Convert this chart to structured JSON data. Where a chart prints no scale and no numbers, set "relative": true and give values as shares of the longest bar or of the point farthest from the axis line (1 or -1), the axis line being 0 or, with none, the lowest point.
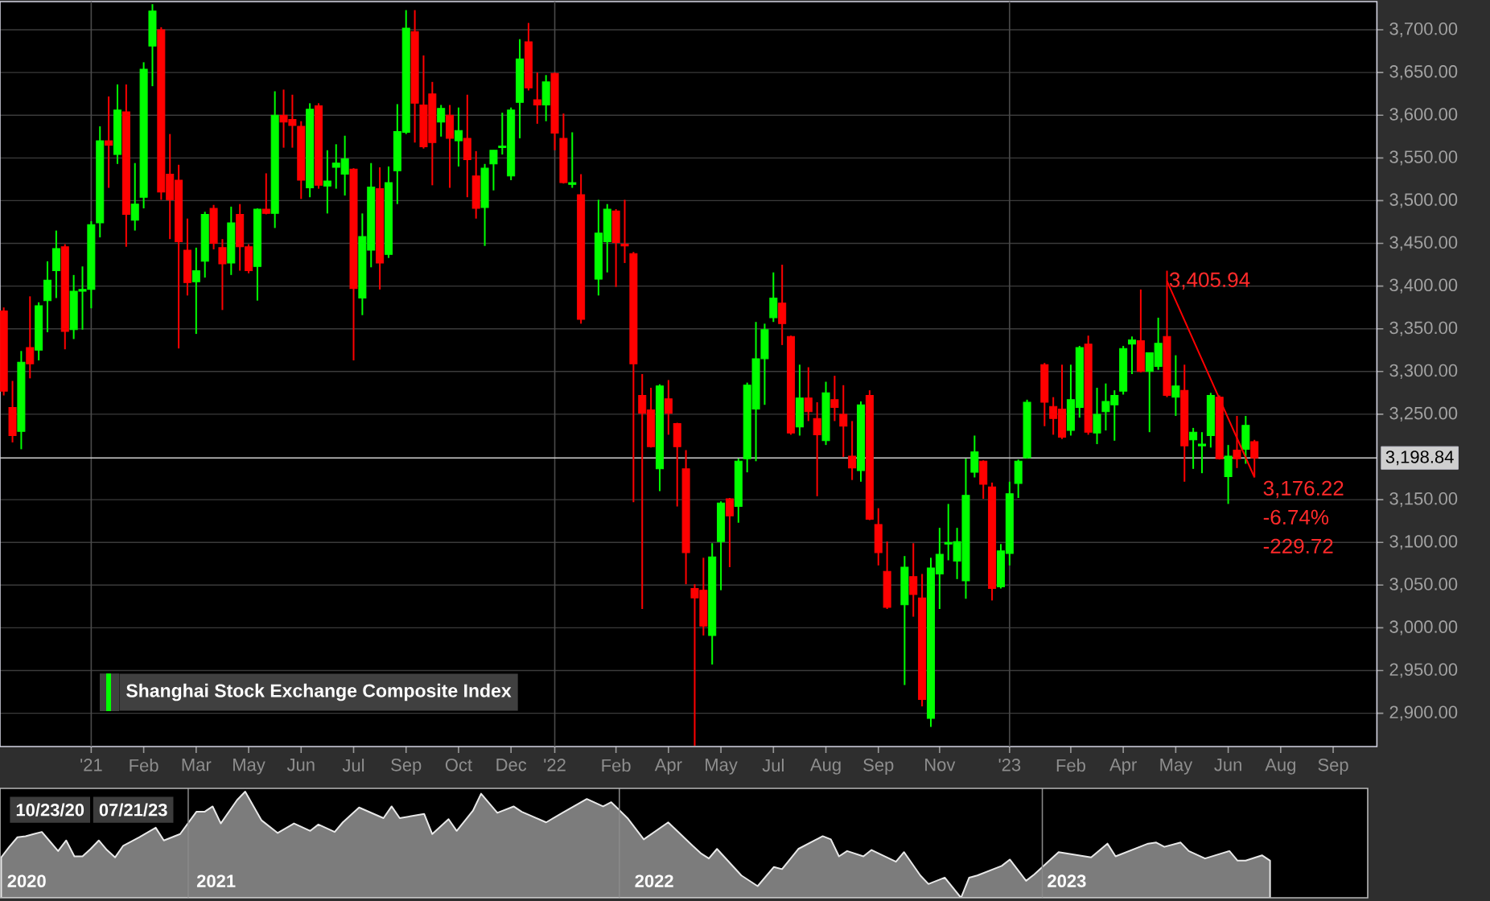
{
  "chart_data": [
    {
      "type": "candlestick",
      "x": [
        "2020-10-23",
        "2020-10-30",
        "2020-11-06",
        "2020-11-13",
        "2020-11-20",
        "2020-11-27",
        "2020-12-04",
        "2020-12-11",
        "2020-12-18",
        "2020-12-25",
        "2021-01-01",
        "2021-01-08",
        "2021-01-15",
        "2021-01-22",
        "2021-01-29",
        "2021-02-05",
        "2021-02-12",
        "2021-02-19",
        "2021-02-26",
        "2021-03-05",
        "2021-03-12",
        "2021-03-19",
        "2021-03-26",
        "2021-04-02",
        "2021-04-09",
        "2021-04-16",
        "2021-04-23",
        "2021-04-30",
        "2021-05-07",
        "2021-05-14",
        "2021-05-21",
        "2021-05-28",
        "2021-06-04",
        "2021-06-11",
        "2021-06-18",
        "2021-06-25",
        "2021-07-02",
        "2021-07-09",
        "2021-07-16",
        "2021-07-23",
        "2021-07-30",
        "2021-08-06",
        "2021-08-13",
        "2021-08-20",
        "2021-08-27",
        "2021-09-03",
        "2021-09-10",
        "2021-09-17",
        "2021-09-24",
        "2021-10-01",
        "2021-10-08",
        "2021-10-15",
        "2021-10-22",
        "2021-10-29",
        "2021-11-05",
        "2021-11-12",
        "2021-11-19",
        "2021-11-26",
        "2021-12-03",
        "2021-12-10",
        "2021-12-17",
        "2021-12-24",
        "2021-12-31",
        "2022-01-07",
        "2022-01-14",
        "2022-01-21",
        "2022-01-28",
        "2022-02-11",
        "2022-02-18",
        "2022-02-25",
        "2022-03-04",
        "2022-03-11",
        "2022-03-18",
        "2022-03-25",
        "2022-04-01",
        "2022-04-08",
        "2022-04-15",
        "2022-04-22",
        "2022-04-29",
        "2022-05-06",
        "2022-05-13",
        "2022-05-20",
        "2022-05-27",
        "2022-06-03",
        "2022-06-10",
        "2022-06-17",
        "2022-06-24",
        "2022-07-01",
        "2022-07-08",
        "2022-07-15",
        "2022-07-22",
        "2022-07-29",
        "2022-08-05",
        "2022-08-12",
        "2022-08-19",
        "2022-08-26",
        "2022-09-02",
        "2022-09-09",
        "2022-09-16",
        "2022-09-23",
        "2022-09-30",
        "2022-10-14",
        "2022-10-21",
        "2022-10-28",
        "2022-11-04",
        "2022-11-11",
        "2022-11-18",
        "2022-11-25",
        "2022-12-02",
        "2022-12-09",
        "2022-12-16",
        "2022-12-23",
        "2022-12-30",
        "2023-01-06",
        "2023-01-13",
        "2023-01-20",
        "2023-02-03",
        "2023-02-10",
        "2023-02-17",
        "2023-02-24",
        "2023-03-03",
        "2023-03-10",
        "2023-03-17",
        "2023-03-24",
        "2023-03-31",
        "2023-04-07",
        "2023-04-14",
        "2023-04-21",
        "2023-04-28",
        "2023-05-05",
        "2023-05-12",
        "2023-05-19",
        "2023-05-26",
        "2023-06-02",
        "2023-06-09",
        "2023-06-16",
        "2023-06-23",
        "2023-06-30",
        "2023-07-07",
        "2023-07-14",
        "2023-07-21"
      ],
      "series": [
        {
          "name": "Shanghai Stock Exchange Composite Index",
          "color": "#00ff00",
          "colors": [
            "#ff0000",
            "#ff0000",
            "#00ff00",
            "#ff0000",
            "#00ff00",
            "#00ff00",
            "#00ff00",
            "#ff0000",
            "#00ff00",
            "#00ff00",
            "#00ff00",
            "#00ff00",
            "#ff0000",
            "#00ff00",
            "#ff0000",
            "#00ff00",
            "#00ff00",
            "#00ff00",
            "#ff0000",
            "#ff0000",
            "#ff0000",
            "#ff0000",
            "#00ff00",
            "#00ff00",
            "#ff0000",
            "#ff0000",
            "#00ff00",
            "#ff0000",
            "#ff0000",
            "#00ff00",
            "#ff0000",
            "#00ff00",
            "#ff0000",
            "#ff0000",
            "#ff0000",
            "#00ff00",
            "#ff0000",
            "#00ff00",
            "#00ff00",
            "#00ff00",
            "#ff0000",
            "#00ff00",
            "#00ff00",
            "#ff0000",
            "#00ff00",
            "#00ff00",
            "#00ff00",
            "#ff0000",
            "#ff0000",
            "#ff0000",
            "#00ff00",
            "#ff0000",
            "#00ff00",
            "#ff0000",
            "#ff0000",
            "#00ff00",
            "#00ff00",
            "#00ff00",
            "#00ff00",
            "#00ff00",
            "#ff0000",
            "#ff0000",
            "#00ff00",
            "#ff0000",
            "#ff0000",
            "#00ff00",
            "#ff0000",
            "#00ff00",
            "#00ff00",
            "#ff0000",
            "#ff0000",
            "#ff0000",
            "#ff0000",
            "#ff0000",
            "#00ff00",
            "#ff0000",
            "#ff0000",
            "#ff0000",
            "#ff0000",
            "#ff0000",
            "#00ff00",
            "#00ff00",
            "#ff0000",
            "#00ff00",
            "#00ff00",
            "#00ff00",
            "#00ff00",
            "#00ff00",
            "#ff0000",
            "#ff0000",
            "#00ff00",
            "#ff0000",
            "#ff0000",
            "#00ff00",
            "#ff0000",
            "#ff0000",
            "#ff0000",
            "#00ff00",
            "#ff0000",
            "#ff0000",
            "#ff0000",
            "#00ff00",
            "#ff0000",
            "#ff0000",
            "#00ff00",
            "#00ff00",
            "#00ff00",
            "#00ff00",
            "#00ff00",
            "#00ff00",
            "#ff0000",
            "#ff0000",
            "#00ff00",
            "#00ff00",
            "#00ff00",
            "#00ff00",
            "#ff0000",
            "#ff0000",
            "#ff0000",
            "#00ff00",
            "#00ff00",
            "#ff0000",
            "#00ff00",
            "#00ff00",
            "#00ff00",
            "#00ff00",
            "#00ff00",
            "#ff0000",
            "#00ff00",
            "#00ff00",
            "#ff0000",
            "#00ff00",
            "#ff0000",
            "#00ff00",
            "#00ff00",
            "#00ff00",
            "#ff0000",
            "#00ff00",
            "#ff0000",
            "#00ff00",
            "#ff0000"
          ],
          "ohlc": [
            [
              3371,
              3375,
              3272,
              3277
            ],
            [
              3258,
              3289,
              3217,
              3225
            ],
            [
              3230,
              3324,
              3209,
              3311
            ],
            [
              3328,
              3388,
              3292,
              3309
            ],
            [
              3325,
              3381,
              3313,
              3377
            ],
            [
              3383,
              3429,
              3346,
              3407
            ],
            [
              3418,
              3465,
              3386,
              3444
            ],
            [
              3446,
              3449,
              3326,
              3347
            ],
            [
              3349,
              3413,
              3338,
              3394
            ],
            [
              3394,
              3423,
              3349,
              3396
            ],
            [
              3396,
              3476,
              3374,
              3472
            ],
            [
              3474,
              3587,
              3457,
              3570
            ],
            [
              3570,
              3622,
              3515,
              3565
            ],
            [
              3554,
              3636,
              3543,
              3606
            ],
            [
              3604,
              3636,
              3446,
              3484
            ],
            [
              3477,
              3544,
              3465,
              3496
            ],
            [
              3504,
              3662,
              3491,
              3654
            ],
            [
              3681,
              3730,
              3634,
              3722
            ],
            [
              3700,
              3703,
              3501,
              3510
            ],
            [
              3531,
              3578,
              3455,
              3501
            ],
            [
              3524,
              3542,
              3327,
              3452
            ],
            [
              3442,
              3479,
              3389,
              3404
            ],
            [
              3405,
              3445,
              3344,
              3418
            ],
            [
              3429,
              3487,
              3410,
              3484
            ],
            [
              3491,
              3495,
              3443,
              3450
            ],
            [
              3445,
              3455,
              3372,
              3426
            ],
            [
              3427,
              3493,
              3413,
              3474
            ],
            [
              3484,
              3496,
              3418,
              3446
            ],
            [
              3446,
              3449,
              3415,
              3418
            ],
            [
              3423,
              3491,
              3383,
              3490
            ],
            [
              3490,
              3532,
              3484,
              3485
            ],
            [
              3485,
              3628,
              3468,
              3600
            ],
            [
              3600,
              3630,
              3562,
              3592
            ],
            [
              3595,
              3624,
              3562,
              3588
            ],
            [
              3587,
              3593,
              3502,
              3524
            ],
            [
              3515,
              3614,
              3504,
              3607
            ],
            [
              3611,
              3614,
              3514,
              3518
            ],
            [
              3517,
              3559,
              3485,
              3523
            ],
            [
              3539,
              3566,
              3514,
              3544
            ],
            [
              3531,
              3576,
              3506,
              3549
            ],
            [
              3537,
              3538,
              3313,
              3397
            ],
            [
              3386,
              3485,
              3366,
              3458
            ],
            [
              3442,
              3544,
              3422,
              3516
            ],
            [
              3514,
              3539,
              3396,
              3427
            ],
            [
              3437,
              3540,
              3433,
              3521
            ],
            [
              3535,
              3613,
              3496,
              3581
            ],
            [
              3580,
              3723,
              3578,
              3702
            ],
            [
              3698,
              3723,
              3568,
              3614
            ],
            [
              3612,
              3670,
              3561,
              3563
            ],
            [
              3625,
              3639,
              3518,
              3568
            ],
            [
              3592,
              3612,
              3575,
              3608
            ],
            [
              3600,
              3612,
              3515,
              3573
            ],
            [
              3570,
              3609,
              3540,
              3582
            ],
            [
              3573,
              3624,
              3504,
              3548
            ],
            [
              3529,
              3558,
              3479,
              3491
            ],
            [
              3492,
              3543,
              3447,
              3538
            ],
            [
              3543,
              3559,
              3512,
              3559
            ],
            [
              3562,
              3603,
              3554,
              3564
            ],
            [
              3529,
              3609,
              3524,
              3606
            ],
            [
              3615,
              3689,
              3573,
              3666
            ],
            [
              3686,
              3708,
              3629,
              3632
            ],
            [
              3618,
              3650,
              3590,
              3612
            ],
            [
              3612,
              3647,
              3593,
              3639
            ],
            [
              3649,
              3650,
              3559,
              3579
            ],
            [
              3573,
              3602,
              3520,
              3521
            ],
            [
              3519,
              3580,
              3515,
              3521
            ],
            [
              3507,
              3531,
              3356,
              3361
            ],
            [
              3408,
              3501,
              3389,
              3462
            ],
            [
              3452,
              3496,
              3416,
              3490
            ],
            [
              3488,
              3490,
              3399,
              3451
            ],
            [
              3449,
              3501,
              3427,
              3447
            ],
            [
              3438,
              3440,
              3147,
              3309
            ],
            [
              3272,
              3297,
              3022,
              3251
            ],
            [
              3255,
              3281,
              3211,
              3212
            ],
            [
              3186,
              3285,
              3160,
              3283
            ],
            [
              3268,
              3290,
              3226,
              3251
            ],
            [
              3239,
              3240,
              3142,
              3212
            ],
            [
              3186,
              3208,
              3051,
              3088
            ],
            [
              3046,
              3051,
              2862,
              3035
            ],
            [
              3044,
              3082,
              2991,
              3002
            ],
            [
              2991,
              3099,
              2957,
              3083
            ],
            [
              3101,
              3148,
              3044,
              3146
            ],
            [
              3151,
              3152,
              3071,
              3131
            ],
            [
              3142,
              3198,
              3123,
              3195
            ],
            [
              3198,
              3287,
              3182,
              3284
            ],
            [
              3256,
              3358,
              3195,
              3315
            ],
            [
              3315,
              3356,
              3261,
              3349
            ],
            [
              3363,
              3416,
              3358,
              3386
            ],
            [
              3380,
              3425,
              3331,
              3356
            ],
            [
              3341,
              3342,
              3226,
              3228
            ],
            [
              3235,
              3308,
              3225,
              3269
            ],
            [
              3269,
              3305,
              3242,
              3253
            ],
            [
              3245,
              3264,
              3154,
              3226
            ],
            [
              3219,
              3288,
              3214,
              3275
            ],
            [
              3267,
              3295,
              3242,
              3258
            ],
            [
              3250,
              3284,
              3200,
              3236
            ],
            [
              3201,
              3242,
              3173,
              3187
            ],
            [
              3184,
              3265,
              3171,
              3261
            ],
            [
              3272,
              3278,
              3126,
              3127
            ],
            [
              3121,
              3140,
              3073,
              3088
            ],
            [
              3066,
              3101,
              3022,
              3024
            ],
            [
              3027,
              3084,
              2933,
              3071
            ],
            [
              3060,
              3099,
              3013,
              3039
            ],
            [
              3035,
              3063,
              2908,
              2916
            ],
            [
              2894,
              3082,
              2884,
              3070
            ],
            [
              3063,
              3117,
              3022,
              3086
            ],
            [
              3098,
              3145,
              3079,
              3100
            ],
            [
              3078,
              3117,
              3057,
              3101
            ],
            [
              3055,
              3198,
              3034,
              3155
            ],
            [
              3182,
              3225,
              3176,
              3206
            ],
            [
              3195,
              3196,
              3151,
              3168
            ],
            [
              3165,
              3170,
              3032,
              3046
            ],
            [
              3048,
              3098,
              3046,
              3090
            ],
            [
              3087,
              3171,
              3073,
              3157
            ],
            [
              3169,
              3197,
              3152,
              3195
            ],
            [
              3199,
              3267,
              3198,
              3264
            ],
            [
              3308,
              3310,
              3236,
              3264
            ],
            [
              3259,
              3270,
              3226,
              3245
            ],
            [
              3256,
              3308,
              3221,
              3223
            ],
            [
              3231,
              3308,
              3225,
              3267
            ],
            [
              3258,
              3330,
              3246,
              3328
            ],
            [
              3332,
              3342,
              3226,
              3229
            ],
            [
              3228,
              3281,
              3215,
              3250
            ],
            [
              3253,
              3286,
              3231,
              3265
            ],
            [
              3261,
              3278,
              3219,
              3272
            ],
            [
              3277,
              3330,
              3273,
              3327
            ],
            [
              3332,
              3341,
              3297,
              3337
            ],
            [
              3336,
              3396,
              3299,
              3300
            ],
            [
              3300,
              3322,
              3229,
              3322
            ],
            [
              3306,
              3363,
              3302,
              3333
            ],
            [
              3341,
              3418,
              3270,
              3272
            ],
            [
              3270,
              3319,
              3248,
              3283
            ],
            [
              3278,
              3308,
              3171,
              3213
            ],
            [
              3220,
              3234,
              3186,
              3229
            ],
            [
              3213,
              3229,
              3181,
              3215
            ],
            [
              3225,
              3275,
              3211,
              3272
            ],
            [
              3270,
              3272,
              3197,
              3198
            ],
            [
              3177,
              3214,
              3145,
              3201
            ],
            [
              3208,
              3248,
              3187,
              3198
            ],
            [
              3209,
              3248,
              3192,
              3237
            ],
            [
              3218,
              3220,
              3176,
              3198.84
            ]
          ]
        },
        {
          "type": "line",
          "x": [
            "2023-05-12",
            "2023-07-21"
          ],
          "values": [
            3405.94,
            3176.22
          ],
          "color": "#ff0000"
        }
      ],
      "xlim": [
        "2020-10-20",
        "2023-10-27"
      ],
      "xticks": [
        {
          "value": "2021-01-01",
          "label": "'21"
        },
        {
          "value": "2021-02-12",
          "label": "Feb"
        },
        {
          "value": "2021-03-26",
          "label": "Mar"
        },
        {
          "value": "2021-05-07",
          "label": "May"
        },
        {
          "value": "2021-06-18",
          "label": "Jun"
        },
        {
          "value": "2021-07-30",
          "label": "Jul"
        },
        {
          "value": "2021-09-10",
          "label": "Sep"
        },
        {
          "value": "2021-10-22",
          "label": "Oct"
        },
        {
          "value": "2021-12-03",
          "label": "Dec"
        },
        {
          "value": "2022-01-07",
          "label": "'22"
        },
        {
          "value": "2022-02-25",
          "label": "Feb"
        },
        {
          "value": "2022-04-08",
          "label": "Apr"
        },
        {
          "value": "2022-05-20",
          "label": "May"
        },
        {
          "value": "2022-07-01",
          "label": "Jul"
        },
        {
          "value": "2022-08-12",
          "label": "Aug"
        },
        {
          "value": "2022-09-23",
          "label": "Sep"
        },
        {
          "value": "2022-11-11",
          "label": "Nov"
        },
        {
          "value": "2023-01-06",
          "label": "'23"
        },
        {
          "value": "2023-02-24",
          "label": "Feb"
        },
        {
          "value": "2023-04-07",
          "label": "Apr"
        },
        {
          "value": "2023-05-19",
          "label": "May"
        },
        {
          "value": "2023-06-30",
          "label": "Jun"
        },
        {
          "value": "2023-08-11",
          "label": "Aug"
        },
        {
          "value": "2023-09-22",
          "label": "Sep"
        }
      ],
      "ylim": [
        2861,
        3733
      ],
      "yticks": [
        {
          "value": 2900,
          "label": "2,900.00"
        },
        {
          "value": 2950,
          "label": "2,950.00"
        },
        {
          "value": 3000,
          "label": "3,000.00"
        },
        {
          "value": 3050,
          "label": "3,050.00"
        },
        {
          "value": 3100,
          "label": "3,100.00"
        },
        {
          "value": 3150,
          "label": "3,150.00"
        },
        {
          "value": 3250,
          "label": "3,250.00"
        },
        {
          "value": 3300,
          "label": "3,300.00"
        },
        {
          "value": 3350,
          "label": "3,350.00"
        },
        {
          "value": 3400,
          "label": "3,400.00"
        },
        {
          "value": 3450,
          "label": "3,450.00"
        },
        {
          "value": 3500,
          "label": "3,500.00"
        },
        {
          "value": 3550,
          "label": "3,550.00"
        },
        {
          "value": 3600,
          "label": "3,600.00"
        },
        {
          "value": 3650,
          "label": "3,650.00"
        },
        {
          "value": 3700,
          "label": "3,700.00"
        }
      ],
      "grid": "y",
      "legend": "bottom left",
      "ref_lines": [
        {
          "axis": "x",
          "value": "2021-01-01",
          "color": "#4a4a4a"
        },
        {
          "axis": "x",
          "value": "2022-01-07",
          "color": "#4a4a4a"
        },
        {
          "axis": "x",
          "value": "2023-01-06",
          "color": "#4a4a4a"
        },
        {
          "axis": "y",
          "value": 3198.84,
          "label": "3,198.84",
          "color": "#cfcfcf"
        }
      ],
      "annotations": [
        {
          "text": "3,405.94",
          "x": "2023-05-12",
          "y": 3405.94
        },
        {
          "text": "3,176.22",
          "x": "2023-07-21",
          "y": 3176.22
        },
        "-6.74%",
        "-229.72"
      ]
    },
    {
      "type": "area",
      "relative": true,
      "x": [
        "2020-07-24",
        "2020-07-31",
        "2020-08-07",
        "2020-08-14",
        "2020-08-21",
        "2020-08-28",
        "2020-09-04",
        "2020-09-11",
        "2020-09-18",
        "2020-09-25",
        "2020-10-02",
        "2020-10-09",
        "2020-10-16",
        "2020-10-23",
        "2020-10-30",
        "2020-11-06",
        "2020-11-20",
        "2020-12-04",
        "2020-12-11",
        "2020-12-25",
        "2021-01-08",
        "2021-01-15",
        "2021-01-22",
        "2021-01-29",
        "2021-02-12",
        "2021-02-19",
        "2021-03-05",
        "2021-03-19",
        "2021-04-02",
        "2021-04-16",
        "2021-04-23",
        "2021-05-07",
        "2021-05-14",
        "2021-05-28",
        "2021-06-18",
        "2021-06-25",
        "2021-07-02",
        "2021-07-23",
        "2021-07-30",
        "2021-08-13",
        "2021-08-20",
        "2021-09-03",
        "2021-09-10",
        "2021-09-24",
        "2021-10-08",
        "2021-10-15",
        "2021-11-05",
        "2021-11-19",
        "2021-12-10",
        "2021-12-24",
        "2021-12-31",
        "2022-01-14",
        "2022-01-28",
        "2022-02-18",
        "2022-03-11",
        "2022-03-18",
        "2022-03-25",
        "2022-04-01",
        "2022-04-22",
        "2022-05-06",
        "2022-05-20",
        "2022-05-27",
        "2022-06-10",
        "2022-06-24",
        "2022-07-01",
        "2022-07-08",
        "2022-07-15",
        "2022-07-22",
        "2022-08-05",
        "2022-08-12",
        "2022-09-02",
        "2022-09-09",
        "2022-09-23",
        "2022-09-30",
        "2022-10-14",
        "2022-10-28",
        "2022-11-04",
        "2022-11-11",
        "2022-12-02",
        "2022-12-09",
        "2022-12-23",
        "2022-12-30",
        "2023-01-20",
        "2023-02-17",
        "2023-03-03",
        "2023-03-10",
        "2023-04-07",
        "2023-04-14",
        "2023-04-21",
        "2023-05-05",
        "2023-05-12",
        "2023-05-26",
        "2023-06-16",
        "2023-06-23",
        "2023-06-30",
        "2023-07-14",
        "2023-07-21"
      ],
      "values": [
        0.38,
        0.48,
        0.57,
        0.58,
        0.6,
        0.62,
        0.53,
        0.44,
        0.54,
        0.39,
        0.39,
        0.46,
        0.54,
        0.45,
        0.38,
        0.49,
        0.57,
        0.66,
        0.54,
        0.6,
        0.81,
        0.81,
        0.86,
        0.7,
        0.92,
        1,
        0.73,
        0.61,
        0.7,
        0.63,
        0.69,
        0.62,
        0.71,
        0.85,
        0.75,
        0.86,
        0.75,
        0.79,
        0.6,
        0.74,
        0.63,
        0.82,
        0.98,
        0.8,
        0.86,
        0.81,
        0.71,
        0.8,
        0.93,
        0.86,
        0.9,
        0.75,
        0.55,
        0.71,
        0.49,
        0.42,
        0.37,
        0.46,
        0.21,
        0.11,
        0.29,
        0.27,
        0.46,
        0.54,
        0.58,
        0.55,
        0.39,
        0.44,
        0.39,
        0.45,
        0.34,
        0.43,
        0.21,
        0.13,
        0.19,
        0,
        0.19,
        0.21,
        0.3,
        0.36,
        0.16,
        0.22,
        0.43,
        0.38,
        0.51,
        0.39,
        0.51,
        0.52,
        0.48,
        0.52,
        0.44,
        0.37,
        0.44,
        0.35,
        0.35,
        0.4,
        0.35
      ],
      "color": "#7c7c7c",
      "xlim": [
        "2020-07-23",
        "2023-10-13"
      ],
      "xticks": [
        {
          "value": "2020-08-15",
          "label": "2020"
        },
        {
          "value": "2021-01-25",
          "label": "2021"
        },
        {
          "value": "2022-02-06",
          "label": "2022"
        },
        {
          "value": "2023-01-27",
          "label": "2023"
        }
      ],
      "ref_lines": [
        {
          "axis": "x",
          "value": "2021-01-01",
          "color": "#8a8a8a"
        },
        {
          "axis": "x",
          "value": "2022-01-07",
          "color": "#8a8a8a"
        },
        {
          "axis": "x",
          "value": "2023-01-06",
          "color": "#8a8a8a"
        }
      ],
      "annotations": [
        "10/23/20",
        "07/21/23"
      ]
    }
  ]
}
